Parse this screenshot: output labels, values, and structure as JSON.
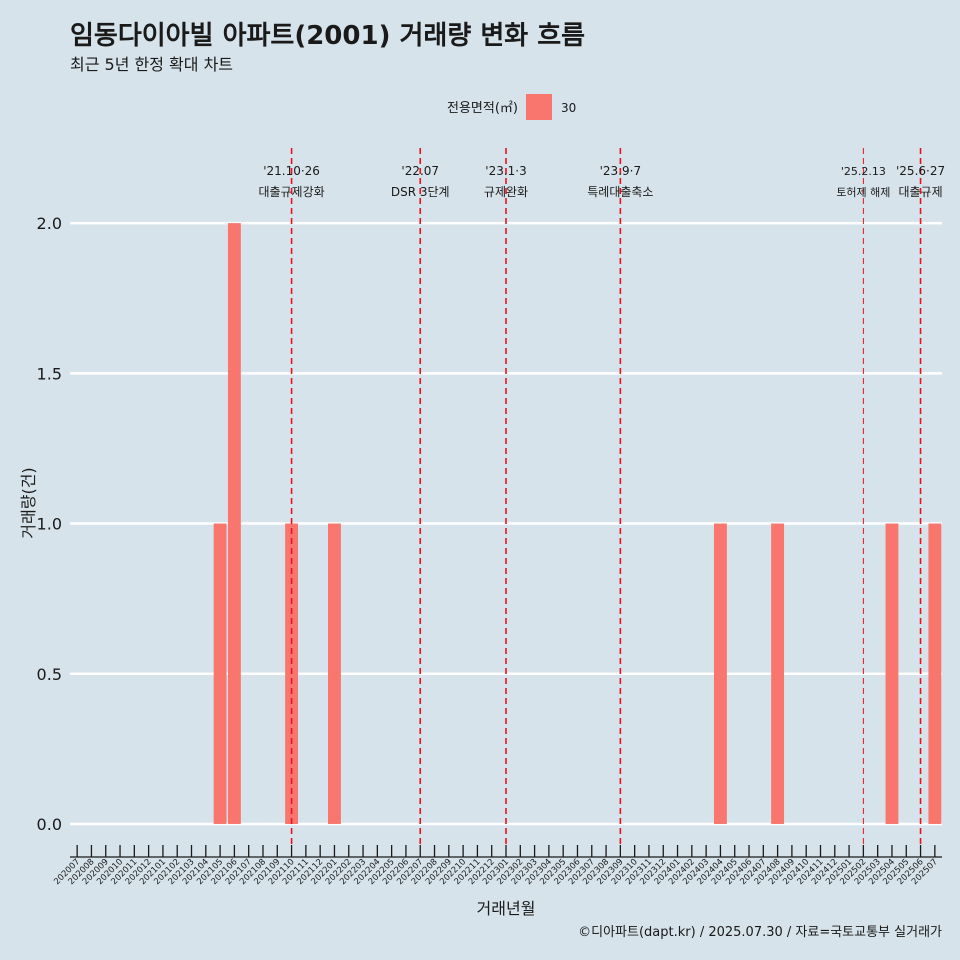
{
  "chart_data": {
    "type": "bar",
    "title": "임동다이아빌 아파트(2001) 거래량 변화 흐름",
    "subtitle": "최근 5년 한정 확대 차트",
    "xlabel": "거래년월",
    "ylabel": "거래량(건)",
    "caption": "©디아파트(dapt.kr) / 2025.07.30 / 자료=국토교통부 실거래가",
    "legend": {
      "title": "전용면적(㎡)",
      "placement": "top",
      "entries": [
        {
          "label": "30",
          "color": "#F8766D"
        }
      ]
    },
    "grid": true,
    "ylim": [
      -0.07,
      2.25
    ],
    "yticks": [
      0.0,
      0.5,
      1.0,
      1.5,
      2.0
    ],
    "ytick_labels": [
      "0.0",
      "0.5",
      "1.0",
      "1.5",
      "2.0"
    ],
    "categories": [
      "202007",
      "202008",
      "202009",
      "202010",
      "202011",
      "202012",
      "202101",
      "202102",
      "202103",
      "202104",
      "202105",
      "202106",
      "202107",
      "202108",
      "202109",
      "202110",
      "202111",
      "202112",
      "202201",
      "202202",
      "202203",
      "202204",
      "202205",
      "202206",
      "202207",
      "202208",
      "202209",
      "202210",
      "202211",
      "202212",
      "202301",
      "202302",
      "202303",
      "202304",
      "202305",
      "202306",
      "202307",
      "202308",
      "202309",
      "202310",
      "202311",
      "202312",
      "202401",
      "202402",
      "202403",
      "202404",
      "202405",
      "202406",
      "202407",
      "202408",
      "202409",
      "202410",
      "202411",
      "202412",
      "202501",
      "202502",
      "202503",
      "202504",
      "202505",
      "202506",
      "202507"
    ],
    "series": [
      {
        "name": "30",
        "color": "#F8766D",
        "values": [
          0,
          0,
          0,
          0,
          0,
          0,
          0,
          0,
          0,
          0,
          1,
          2,
          0,
          0,
          0,
          1,
          0,
          0,
          1,
          0,
          0,
          0,
          0,
          0,
          0,
          0,
          0,
          0,
          0,
          0,
          0,
          0,
          0,
          0,
          0,
          0,
          0,
          0,
          0,
          0,
          0,
          0,
          0,
          0,
          0,
          1,
          0,
          0,
          0,
          1,
          0,
          0,
          0,
          0,
          0,
          0,
          0,
          1,
          0,
          0,
          1
        ]
      }
    ],
    "annotations": [
      {
        "x": "202110",
        "line1": "'21.10·26",
        "line2": "대출규제강화",
        "emphasis": "major"
      },
      {
        "x": "202207",
        "line1": "'22.07",
        "line2": "DSR 3단계",
        "emphasis": "major"
      },
      {
        "x": "202301",
        "line1": "'23.1·3",
        "line2": "규제완화",
        "emphasis": "major"
      },
      {
        "x": "202309",
        "line1": "'23.9·7",
        "line2": "특례대출축소",
        "emphasis": "major"
      },
      {
        "x": "202502",
        "line1": "'25.2.13",
        "line2": "토허제 해제",
        "emphasis": "minor"
      },
      {
        "x": "202506",
        "line1": "'25.6·27",
        "line2": "대출규제",
        "emphasis": "major"
      }
    ],
    "annotation_color": "#e8141c"
  }
}
